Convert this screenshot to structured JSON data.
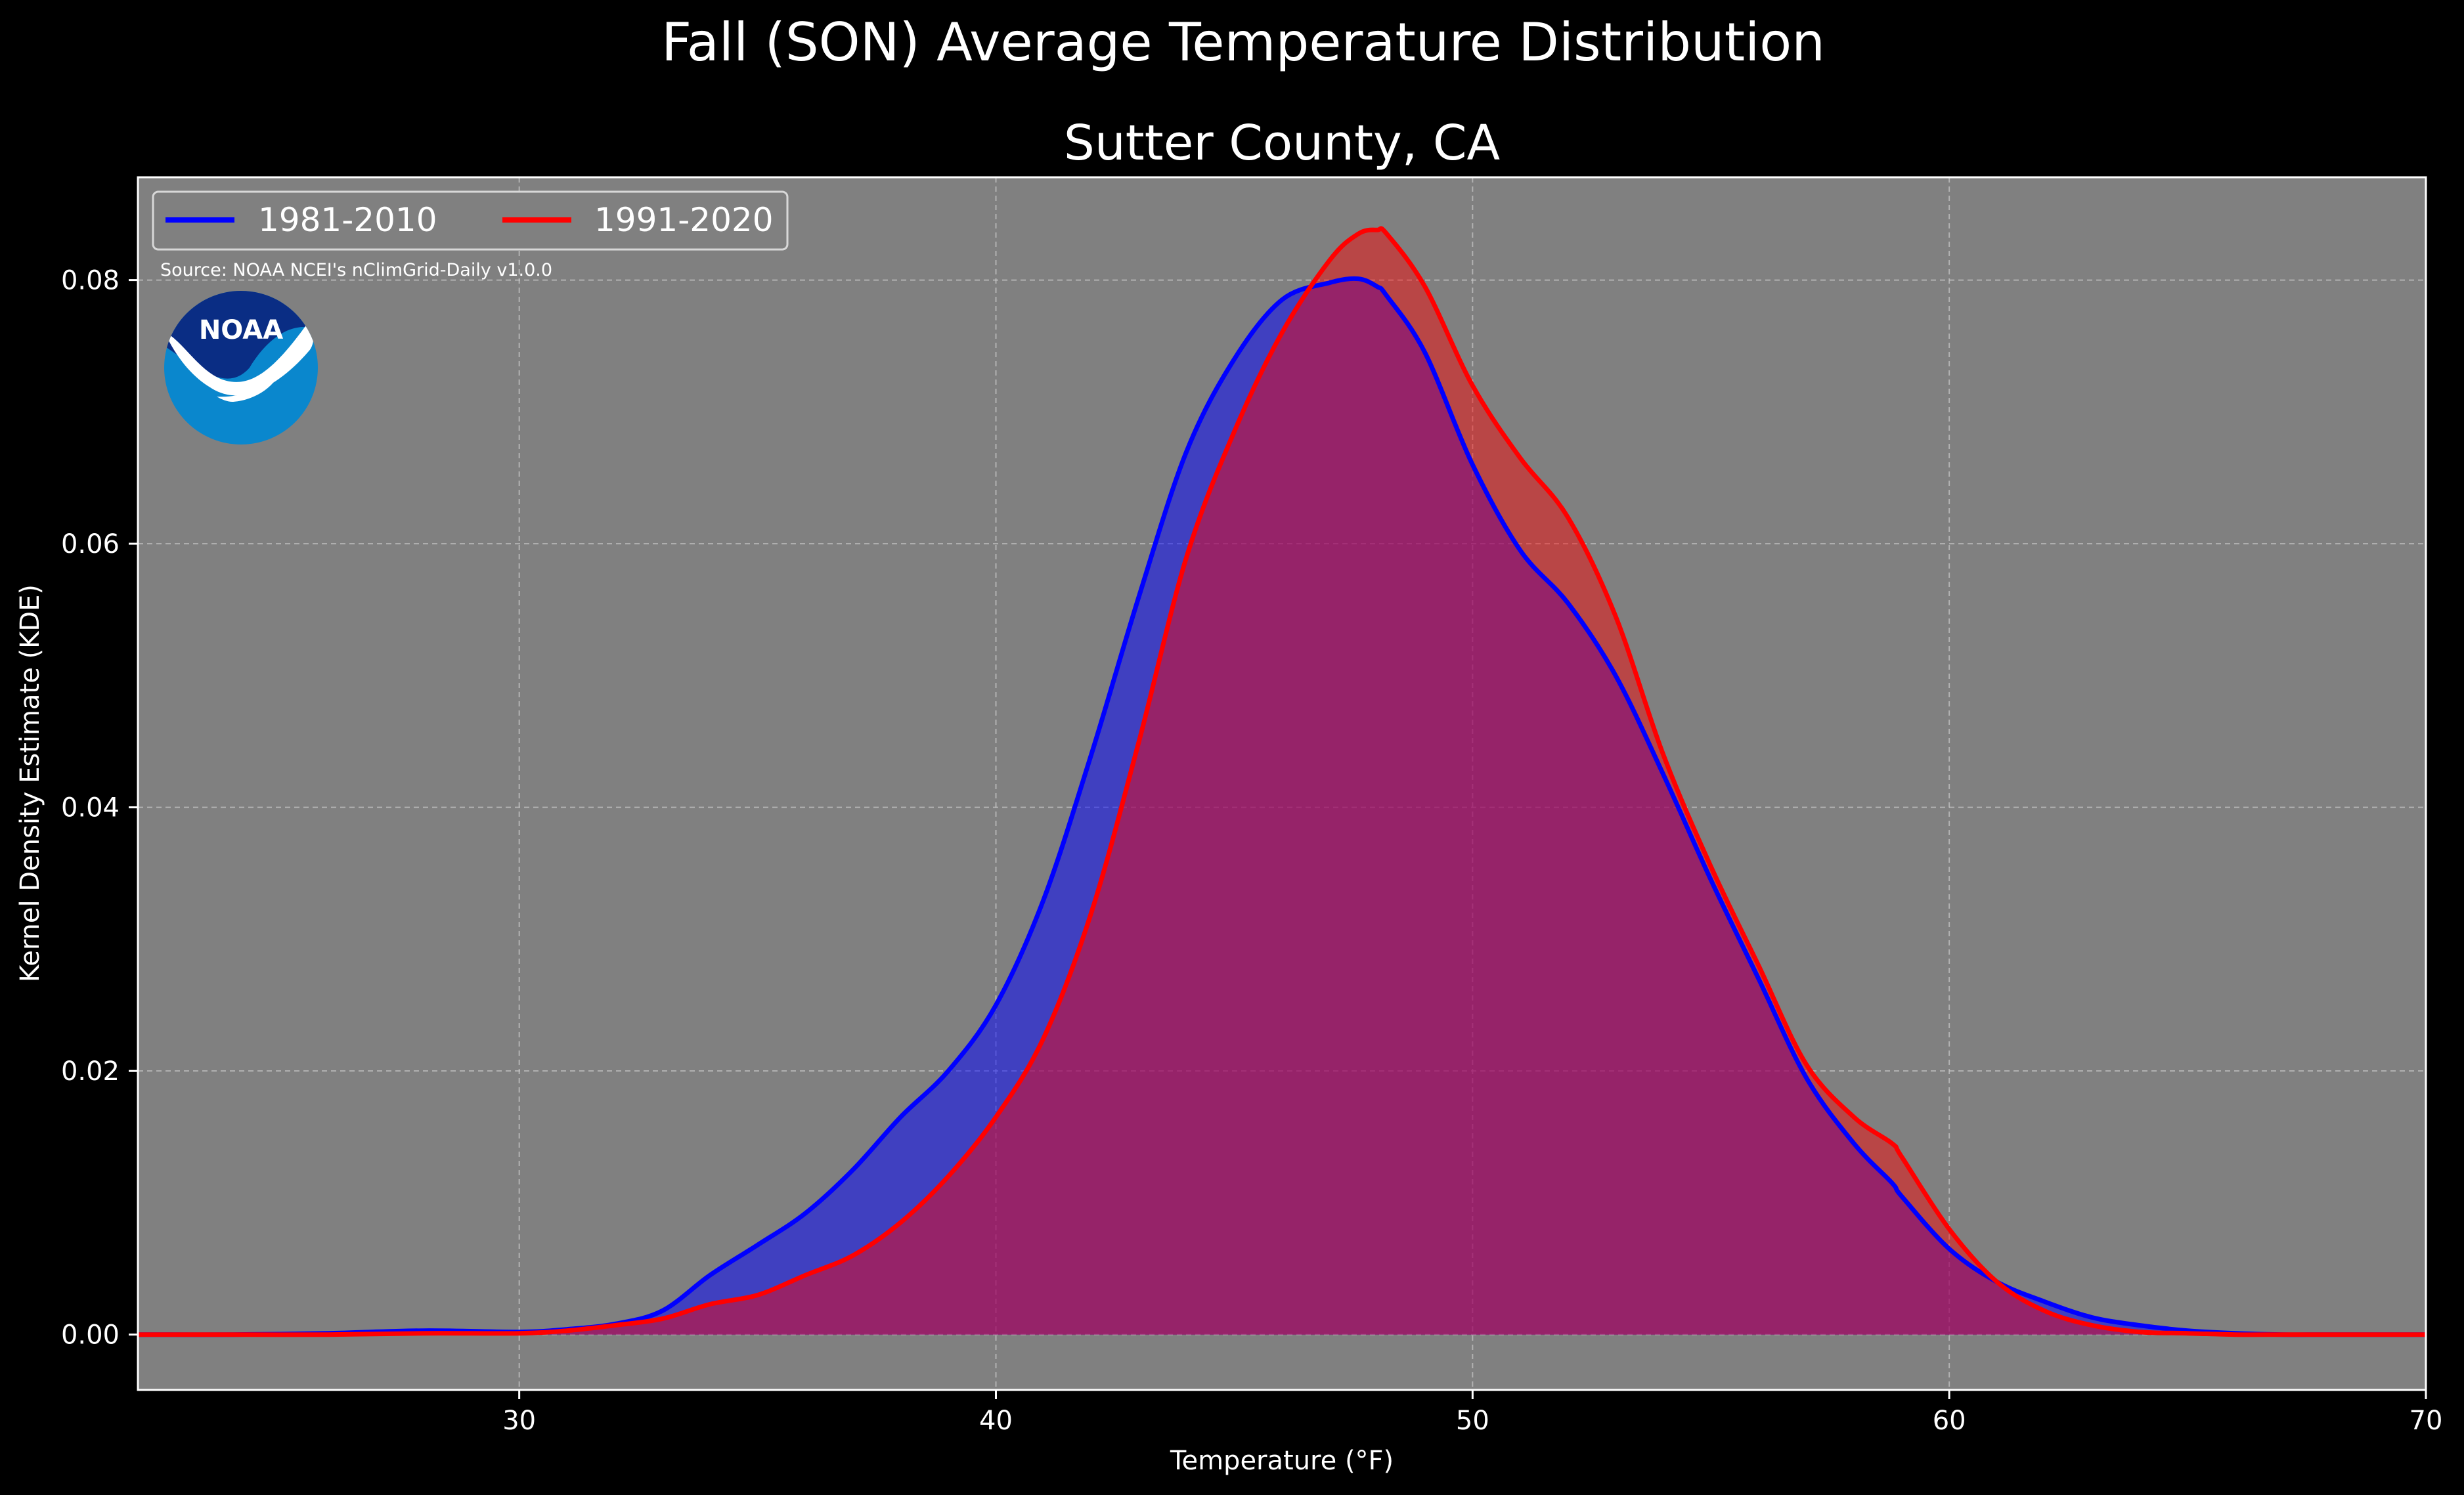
{
  "colors": {
    "figure_background": "#000000",
    "plot_background": "#808080",
    "series_1": "#0000ff",
    "series_2": "#ff0000",
    "text": "#ffffff",
    "noaa_dark": "#0a2d84",
    "noaa_light": "#0a87cd"
  },
  "logo": {
    "text": "NOAA",
    "icon": "noaa-logo-icon"
  },
  "chart_data": {
    "type": "area",
    "title": "Fall (SON) Average Temperature Distribution",
    "subtitle": "Sutter County, CA",
    "xlabel": "Temperature (°F)",
    "ylabel": "Kernel Density Estimate (KDE)",
    "xlim": [
      22,
      70
    ],
    "ylim": [
      -0.0042,
      0.0878
    ],
    "xticks": [
      30,
      40,
      50,
      60,
      70
    ],
    "yticks": [
      0.0,
      0.02,
      0.04,
      0.06,
      0.08
    ],
    "xtick_labels": [
      "30",
      "40",
      "50",
      "60",
      "70"
    ],
    "ytick_labels": [
      "0.00",
      "0.02",
      "0.04",
      "0.06",
      "0.08"
    ],
    "grid": true,
    "legend_position": "upper-left",
    "annotation": "Source: NOAA NCEI's nClimGrid-Daily v1.0.0",
    "x": [
      22,
      24,
      26,
      28,
      30,
      31,
      32,
      33,
      34,
      35,
      36,
      37,
      38,
      39,
      40,
      41,
      42,
      43,
      44,
      45,
      46,
      47,
      47.6,
      48,
      48.2,
      49,
      50,
      51,
      52,
      53,
      54,
      55,
      56,
      57,
      58,
      58.8,
      59,
      60,
      61,
      62,
      63,
      64,
      65,
      66,
      67,
      68,
      70
    ],
    "series": [
      {
        "name": "1981-2010",
        "values": [
          0.0,
          0.0,
          0.0001,
          0.0003,
          0.0002,
          0.0004,
          0.0008,
          0.0018,
          0.0045,
          0.0068,
          0.0092,
          0.0125,
          0.0165,
          0.02,
          0.025,
          0.033,
          0.044,
          0.056,
          0.067,
          0.074,
          0.0785,
          0.0798,
          0.0801,
          0.0795,
          0.0788,
          0.0745,
          0.066,
          0.0595,
          0.0555,
          0.05,
          0.0425,
          0.0345,
          0.027,
          0.0195,
          0.0145,
          0.0115,
          0.0105,
          0.0065,
          0.004,
          0.0025,
          0.0013,
          0.0007,
          0.0003,
          0.0001,
          0.0,
          0.0,
          0.0
        ]
      },
      {
        "name": "1991-2020",
        "values": [
          0.0,
          0.0,
          0.0,
          0.0001,
          0.0001,
          0.0003,
          0.0007,
          0.0012,
          0.0023,
          0.003,
          0.0045,
          0.006,
          0.0085,
          0.012,
          0.0165,
          0.0225,
          0.032,
          0.045,
          0.059,
          0.0685,
          0.076,
          0.0815,
          0.0835,
          0.0838,
          0.0835,
          0.0795,
          0.072,
          0.0665,
          0.062,
          0.0545,
          0.044,
          0.0355,
          0.028,
          0.0205,
          0.0165,
          0.0145,
          0.0135,
          0.008,
          0.004,
          0.0018,
          0.0007,
          0.0002,
          0.0001,
          0.0,
          0.0,
          0.0,
          0.0
        ]
      }
    ]
  }
}
